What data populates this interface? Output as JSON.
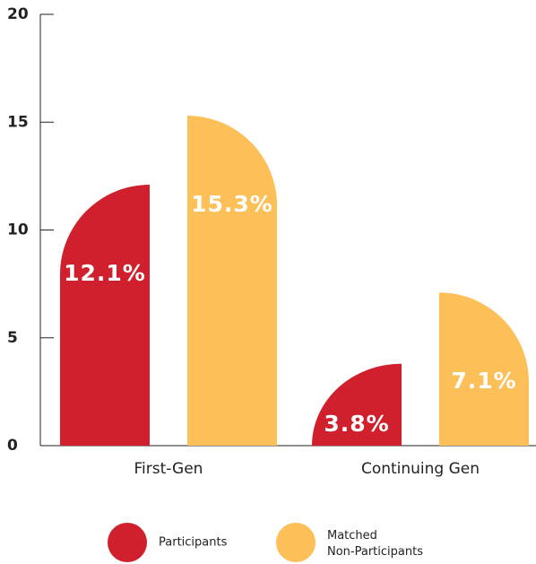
{
  "chart_data": {
    "type": "bar",
    "categories": [
      "First-Gen",
      "Continuing Gen"
    ],
    "series": [
      {
        "name": "Participants",
        "color": "#d0202e",
        "values": [
          12.1,
          3.8
        ],
        "value_labels": [
          "12.1%",
          "3.8%"
        ]
      },
      {
        "name": "Matched Non-Participants",
        "color": "#fdbf57",
        "values": [
          15.3,
          7.1
        ],
        "value_labels": [
          "15.3%",
          "7.1%"
        ]
      }
    ],
    "ylim": [
      0,
      20
    ],
    "yticks": [
      0,
      5,
      10,
      15,
      20
    ],
    "legend": "bottom"
  }
}
